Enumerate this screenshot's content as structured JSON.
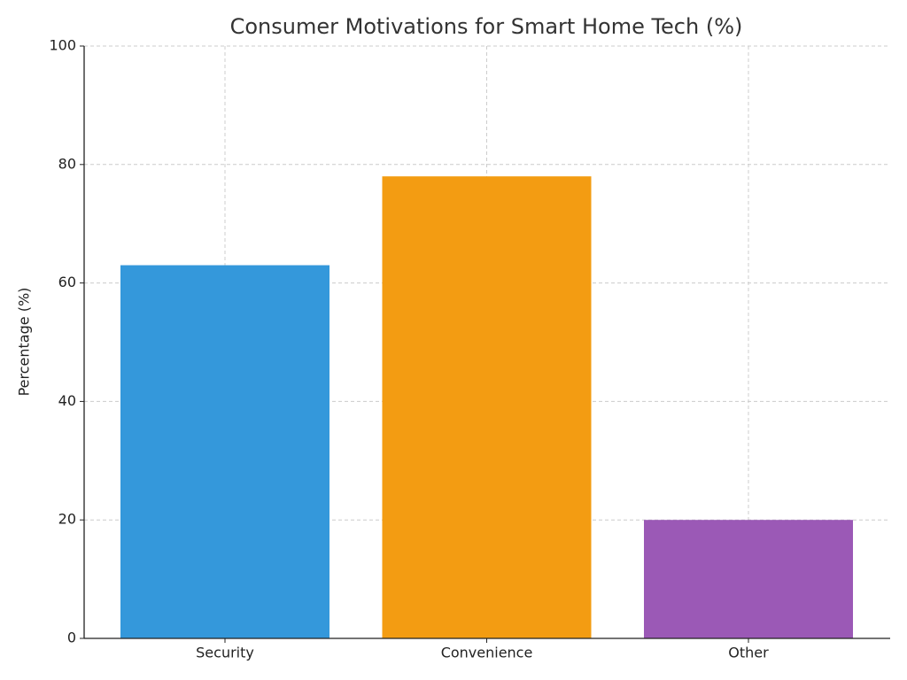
{
  "chart_data": {
    "type": "bar",
    "title": "Consumer Motivations for Smart Home Tech (%)",
    "ylabel": "Percentage (%)",
    "categories": [
      "Security",
      "Convenience",
      "Other"
    ],
    "values": [
      63,
      78,
      20
    ],
    "colors": [
      "#3498db",
      "#f39c12",
      "#9b59b6"
    ],
    "ylim": [
      0,
      100
    ],
    "yticks": [
      0,
      20,
      40,
      60,
      80,
      100
    ],
    "grid": true
  }
}
